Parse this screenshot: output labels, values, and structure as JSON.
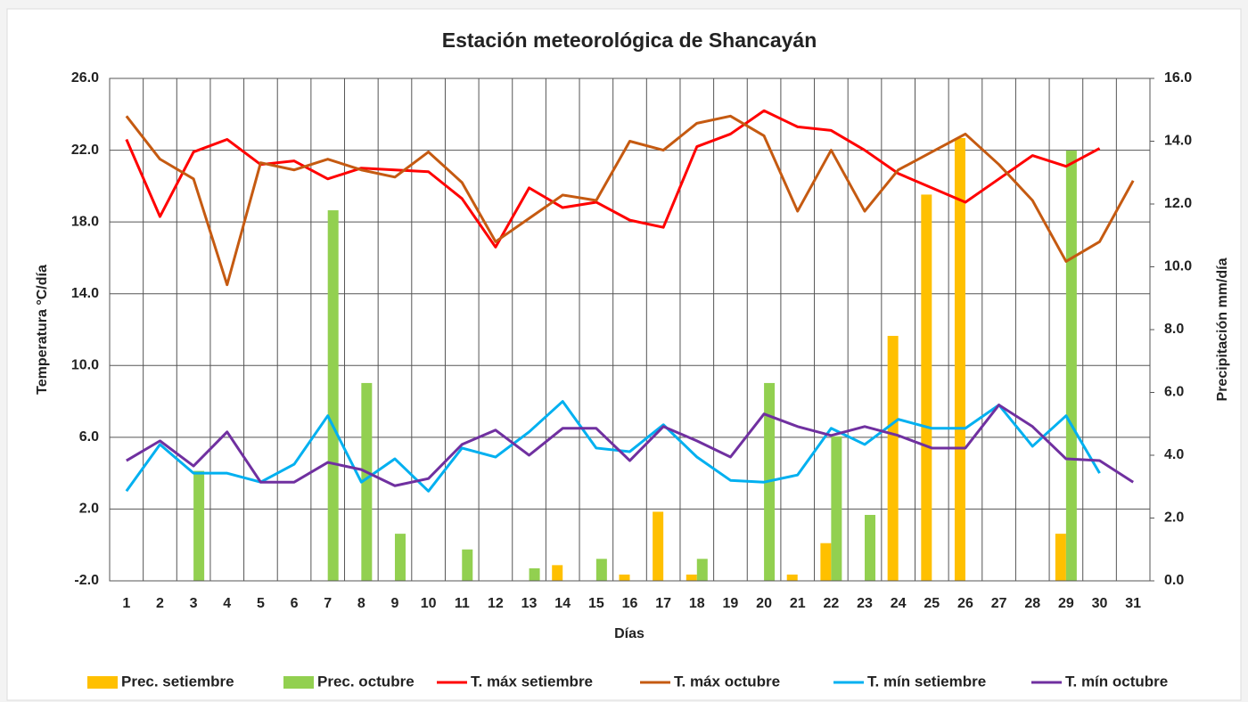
{
  "chart_data": {
    "type": "bar",
    "title": "Estación meteorológica de Shancayán",
    "x_label": "Días",
    "y_label": "Temperatura °C/día",
    "y2_label": "Precipitación mm/día",
    "categories": [
      "1",
      "2",
      "3",
      "4",
      "5",
      "6",
      "7",
      "8",
      "9",
      "10",
      "11",
      "12",
      "13",
      "14",
      "15",
      "16",
      "17",
      "18",
      "19",
      "20",
      "21",
      "22",
      "23",
      "24",
      "25",
      "26",
      "27",
      "28",
      "29",
      "30",
      "31"
    ],
    "ylim": [
      -2,
      26
    ],
    "yticks": [
      {
        "value": -2,
        "label": "-2.0"
      },
      {
        "value": 2,
        "label": "2.0"
      },
      {
        "value": 6,
        "label": "6.0"
      },
      {
        "value": 10,
        "label": "10.0"
      },
      {
        "value": 14,
        "label": "14.0"
      },
      {
        "value": 18,
        "label": "18.0"
      },
      {
        "value": 22,
        "label": "22.0"
      },
      {
        "value": 26,
        "label": "26.0"
      }
    ],
    "y2lim": [
      0,
      16
    ],
    "y2ticks": [
      {
        "value": 0,
        "label": "0.0"
      },
      {
        "value": 2,
        "label": "2.0"
      },
      {
        "value": 4,
        "label": "4.0"
      },
      {
        "value": 6,
        "label": "6.0"
      },
      {
        "value": 8,
        "label": "8.0"
      },
      {
        "value": 10,
        "label": "10.0"
      },
      {
        "value": 12,
        "label": "12.0"
      },
      {
        "value": 14,
        "label": "14.0"
      },
      {
        "value": 16,
        "label": "16.0"
      }
    ],
    "grid": true,
    "legend": "bottom",
    "series": [
      {
        "name": "Prec. setiembre",
        "type": "bar",
        "axis": "y2",
        "color": "#FFC000",
        "values": [
          null,
          null,
          null,
          null,
          null,
          null,
          null,
          null,
          null,
          null,
          null,
          null,
          null,
          0.5,
          null,
          0.2,
          2.2,
          0.2,
          null,
          null,
          0.2,
          1.2,
          null,
          7.8,
          12.3,
          14.1,
          null,
          null,
          1.5,
          null,
          null
        ]
      },
      {
        "name": "Prec. octubre",
        "type": "bar",
        "axis": "y2",
        "color": "#92D050",
        "values": [
          null,
          null,
          3.5,
          null,
          null,
          null,
          11.8,
          6.3,
          1.5,
          null,
          1.0,
          null,
          0.4,
          null,
          0.7,
          null,
          null,
          0.7,
          null,
          6.3,
          null,
          4.6,
          2.1,
          null,
          null,
          null,
          null,
          null,
          13.7,
          null,
          null
        ]
      },
      {
        "name": "T. máx setiembre",
        "type": "line",
        "color": "#FF0000",
        "values": [
          22.6,
          18.3,
          21.9,
          22.6,
          21.2,
          21.4,
          20.4,
          21.0,
          20.9,
          20.8,
          19.3,
          16.6,
          19.9,
          18.8,
          19.1,
          18.1,
          17.7,
          22.2,
          22.9,
          24.2,
          23.3,
          23.1,
          22.0,
          20.7,
          19.9,
          19.1,
          20.4,
          21.7,
          21.1,
          22.1,
          null
        ]
      },
      {
        "name": "T. máx octubre",
        "type": "line",
        "color": "#C55A11",
        "values": [
          23.9,
          21.5,
          20.4,
          14.5,
          21.3,
          20.9,
          21.5,
          20.9,
          20.5,
          21.9,
          20.2,
          16.9,
          18.2,
          19.5,
          19.2,
          22.5,
          22.0,
          23.5,
          23.9,
          22.8,
          18.6,
          22.0,
          18.6,
          20.9,
          21.9,
          22.9,
          21.2,
          19.2,
          15.8,
          16.9,
          20.3
        ]
      },
      {
        "name": "T. mín setiembre",
        "type": "line",
        "color": "#00B0F0",
        "values": [
          3.0,
          5.6,
          4.0,
          4.0,
          3.5,
          4.5,
          7.2,
          3.5,
          4.8,
          3.0,
          5.4,
          4.9,
          6.3,
          8.0,
          5.4,
          5.2,
          6.7,
          4.9,
          3.6,
          3.5,
          3.9,
          6.5,
          5.6,
          7.0,
          6.5,
          6.5,
          7.8,
          5.5,
          7.2,
          4.0,
          null
        ]
      },
      {
        "name": "T. mín octubre",
        "type": "line",
        "color": "#7030A0",
        "values": [
          4.7,
          5.8,
          4.4,
          6.3,
          3.5,
          3.5,
          4.6,
          4.2,
          3.3,
          3.7,
          5.6,
          6.4,
          5.0,
          6.5,
          6.5,
          4.7,
          6.6,
          5.8,
          4.9,
          7.3,
          6.6,
          6.1,
          6.6,
          6.1,
          5.4,
          5.4,
          7.8,
          6.6,
          4.8,
          4.7,
          3.5
        ]
      }
    ]
  }
}
